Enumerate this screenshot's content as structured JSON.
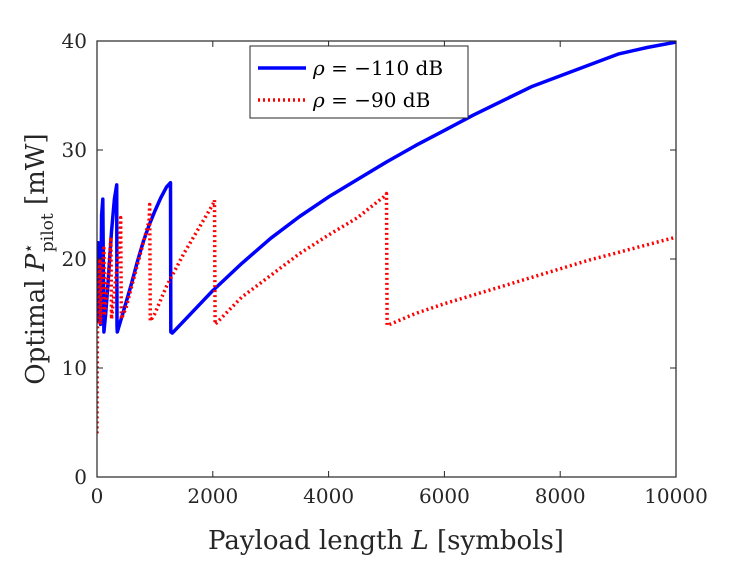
{
  "chart_data": {
    "type": "line",
    "title": "",
    "xlabel": {
      "prefix": "Payload length ",
      "var": "L",
      "suffix": " [symbols]"
    },
    "ylabel": {
      "prefix": "Optimal ",
      "var": "P",
      "sup": "⋆",
      "sub": "pilot",
      "suffix": " [mW]"
    },
    "xlim": [
      0,
      10000
    ],
    "ylim": [
      0,
      40
    ],
    "xticks": [
      0,
      2000,
      4000,
      6000,
      8000,
      10000
    ],
    "xtick_labels": [
      "0",
      "2000",
      "4000",
      "6000",
      "8000",
      "10000"
    ],
    "yticks": [
      0,
      10,
      20,
      30,
      40
    ],
    "ytick_labels": [
      "0",
      "10",
      "20",
      "30",
      "40"
    ],
    "grid": false,
    "legend_position": "top-center",
    "series": [
      {
        "name": "ρ = −110 dB",
        "legend_var": "ρ",
        "legend_rest": " = −110 dB",
        "color": "#0000ff",
        "style": "solid",
        "x": [
          0,
          5,
          10,
          20,
          30,
          40,
          50,
          55,
          60,
          70,
          80,
          100,
          120,
          150,
          200,
          250,
          300,
          340,
          345,
          350,
          400,
          500,
          600,
          700,
          800,
          900,
          1000,
          1100,
          1200,
          1270,
          1275,
          1300,
          1500,
          2000,
          2500,
          3000,
          3500,
          4000,
          4500,
          5000,
          5500,
          6000,
          6500,
          7000,
          7500,
          8000,
          8500,
          9000,
          9500,
          10000
        ],
        "y": [
          14.5,
          19.0,
          21.0,
          21.5,
          14.3,
          17.0,
          18.8,
          14.2,
          14.0,
          19.0,
          24.0,
          25.5,
          13.3,
          15.0,
          18.5,
          22.5,
          25.5,
          26.8,
          13.8,
          13.3,
          14.2,
          16.0,
          17.8,
          19.8,
          21.6,
          23.1,
          24.4,
          25.6,
          26.6,
          27.0,
          13.3,
          13.2,
          14.3,
          17.1,
          19.6,
          21.9,
          23.9,
          25.7,
          27.3,
          28.9,
          30.4,
          31.8,
          33.2,
          34.5,
          35.8,
          36.8,
          37.8,
          38.8,
          39.4,
          39.9
        ]
      },
      {
        "name": "ρ = −90 dB",
        "legend_var": "ρ",
        "legend_rest": " = −90 dB",
        "color": "#ff0000",
        "style": "dotted",
        "x": [
          0,
          2,
          5,
          10,
          20,
          30,
          40,
          50,
          60,
          70,
          80,
          100,
          120,
          130,
          150,
          200,
          240,
          250,
          300,
          400,
          410,
          420,
          500,
          600,
          700,
          800,
          900,
          910,
          920,
          1000,
          1200,
          1500,
          2000,
          2030,
          2040,
          2500,
          3000,
          3500,
          4000,
          4500,
          4950,
          5000,
          5010,
          5500,
          6000,
          6500,
          7000,
          7500,
          8000,
          8500,
          9000,
          9500,
          10000
        ],
        "y": [
          4.0,
          8.0,
          12.0,
          14.5,
          16.5,
          18.0,
          19.0,
          20.0,
          14.0,
          16.0,
          17.5,
          19.5,
          21.0,
          14.8,
          16.0,
          19.0,
          22.0,
          14.5,
          17.0,
          22.0,
          23.8,
          14.5,
          15.5,
          17.5,
          19.5,
          21.5,
          23.5,
          25.0,
          14.3,
          15.0,
          17.5,
          20.5,
          25.0,
          25.4,
          14.0,
          16.5,
          18.5,
          20.5,
          22.2,
          23.8,
          25.7,
          26.0,
          13.9,
          15.0,
          15.9,
          16.7,
          17.5,
          18.3,
          19.1,
          19.9,
          20.6,
          21.3,
          22.0
        ]
      }
    ]
  }
}
